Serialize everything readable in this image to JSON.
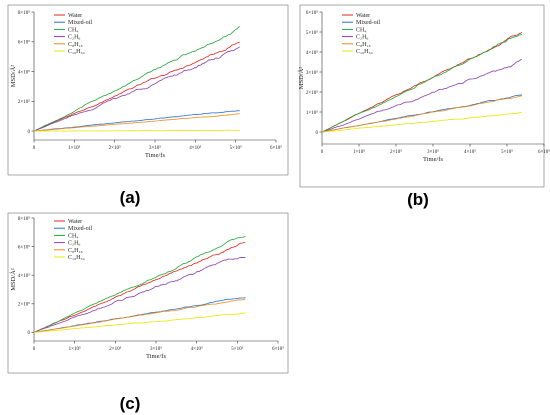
{
  "chart_data": [
    {
      "type": "line",
      "panel_label": "(a)",
      "xlabel": "Time/fs",
      "ylabel": "MSD/Å²",
      "xlim": [
        0,
        600000
      ],
      "ylim": [
        -60000,
        800000
      ],
      "xticks": [
        0,
        100000,
        200000,
        300000,
        400000,
        500000,
        600000
      ],
      "xtick_labels": [
        "0",
        "1×10⁵",
        "2×10⁵",
        "3×10⁵",
        "4×10⁵",
        "5×10⁵",
        "6×10⁵"
      ],
      "yticks": [
        0,
        200000,
        400000,
        600000,
        800000
      ],
      "ytick_labels": [
        "0",
        "2×10⁵",
        "4×10⁵",
        "6×10⁵",
        "8×10⁵"
      ],
      "legend_position": "top-left",
      "x_end": 510000,
      "series": [
        {
          "name": "Water",
          "color": "#e0241b",
          "end": 600000,
          "noise": 9000
        },
        {
          "name": "Mixed-oil",
          "color": "#2a6fc9",
          "end": 140000,
          "noise": 3000
        },
        {
          "name": "CH₄",
          "color": "#22a63a",
          "end": 695000,
          "noise": 10000
        },
        {
          "name": "C₂H₆",
          "color": "#8a3fb0",
          "end": 550000,
          "noise": 13000
        },
        {
          "name": "C₈H₁₈",
          "color": "#f08a1c",
          "end": 115000,
          "noise": 2500
        },
        {
          "name": "C₁₆H₃₄",
          "color": "#e8e600",
          "end": 5000,
          "noise": 1500
        }
      ]
    },
    {
      "type": "line",
      "panel_label": "(b)",
      "xlabel": "Time/fs",
      "ylabel": "MSD/Å²",
      "xlim": [
        0,
        600000
      ],
      "ylim": [
        -60000,
        600000
      ],
      "xticks": [
        0,
        100000,
        200000,
        300000,
        400000,
        500000,
        600000
      ],
      "xtick_labels": [
        "0",
        "1×10⁵",
        "2×10⁵",
        "3×10⁵",
        "4×10⁵",
        "5×10⁵",
        "6×10⁵"
      ],
      "yticks": [
        0,
        100000,
        200000,
        300000,
        400000,
        500000,
        600000
      ],
      "ytick_labels": [
        "0",
        "1×10⁵",
        "2×10⁵",
        "3×10⁵",
        "4×10⁵",
        "5×10⁵",
        "6×10⁵"
      ],
      "legend_position": "top-left",
      "x_end": 540000,
      "series": [
        {
          "name": "Water",
          "color": "#e0241b",
          "end": 495000,
          "noise": 6000
        },
        {
          "name": "Mixed-oil",
          "color": "#2a6fc9",
          "end": 185000,
          "noise": 3000
        },
        {
          "name": "CH₄",
          "color": "#22a63a",
          "end": 492000,
          "noise": 7000
        },
        {
          "name": "C₂H₆",
          "color": "#8a3fb0",
          "end": 350000,
          "noise": 8000
        },
        {
          "name": "C₈H₁₈",
          "color": "#f08a1c",
          "end": 180000,
          "noise": 3000
        },
        {
          "name": "C₁₆H₃₄",
          "color": "#e8e600",
          "end": 97000,
          "noise": 2500
        }
      ]
    },
    {
      "type": "line",
      "panel_label": "(c)",
      "xlabel": "Time/fs",
      "ylabel": "MSD/Å²",
      "xlim": [
        0,
        600000
      ],
      "ylim": [
        -60000,
        800000
      ],
      "xticks": [
        0,
        100000,
        200000,
        300000,
        400000,
        500000,
        600000
      ],
      "xtick_labels": [
        "0",
        "1×10⁵",
        "2×10⁵",
        "3×10⁵",
        "4×10⁵",
        "5×10⁵",
        "6×10⁵"
      ],
      "yticks": [
        0,
        200000,
        400000,
        600000,
        800000
      ],
      "ytick_labels": [
        "0",
        "2×10⁵",
        "4×10⁵",
        "6×10⁵",
        "8×10⁵"
      ],
      "legend_position": "top-left",
      "x_end": 520000,
      "series": [
        {
          "name": "Water",
          "color": "#e0241b",
          "end": 640000,
          "noise": 9000
        },
        {
          "name": "Mixed-oil",
          "color": "#2a6fc9",
          "end": 245000,
          "noise": 4000
        },
        {
          "name": "CH₄",
          "color": "#22a63a",
          "end": 680000,
          "noise": 9000
        },
        {
          "name": "C₂H₆",
          "color": "#8a3fb0",
          "end": 550000,
          "noise": 12000
        },
        {
          "name": "C₈H₁₈",
          "color": "#f08a1c",
          "end": 235000,
          "noise": 4000
        },
        {
          "name": "C₁₆H₃₄",
          "color": "#e8e600",
          "end": 135000,
          "noise": 3000
        }
      ]
    }
  ]
}
